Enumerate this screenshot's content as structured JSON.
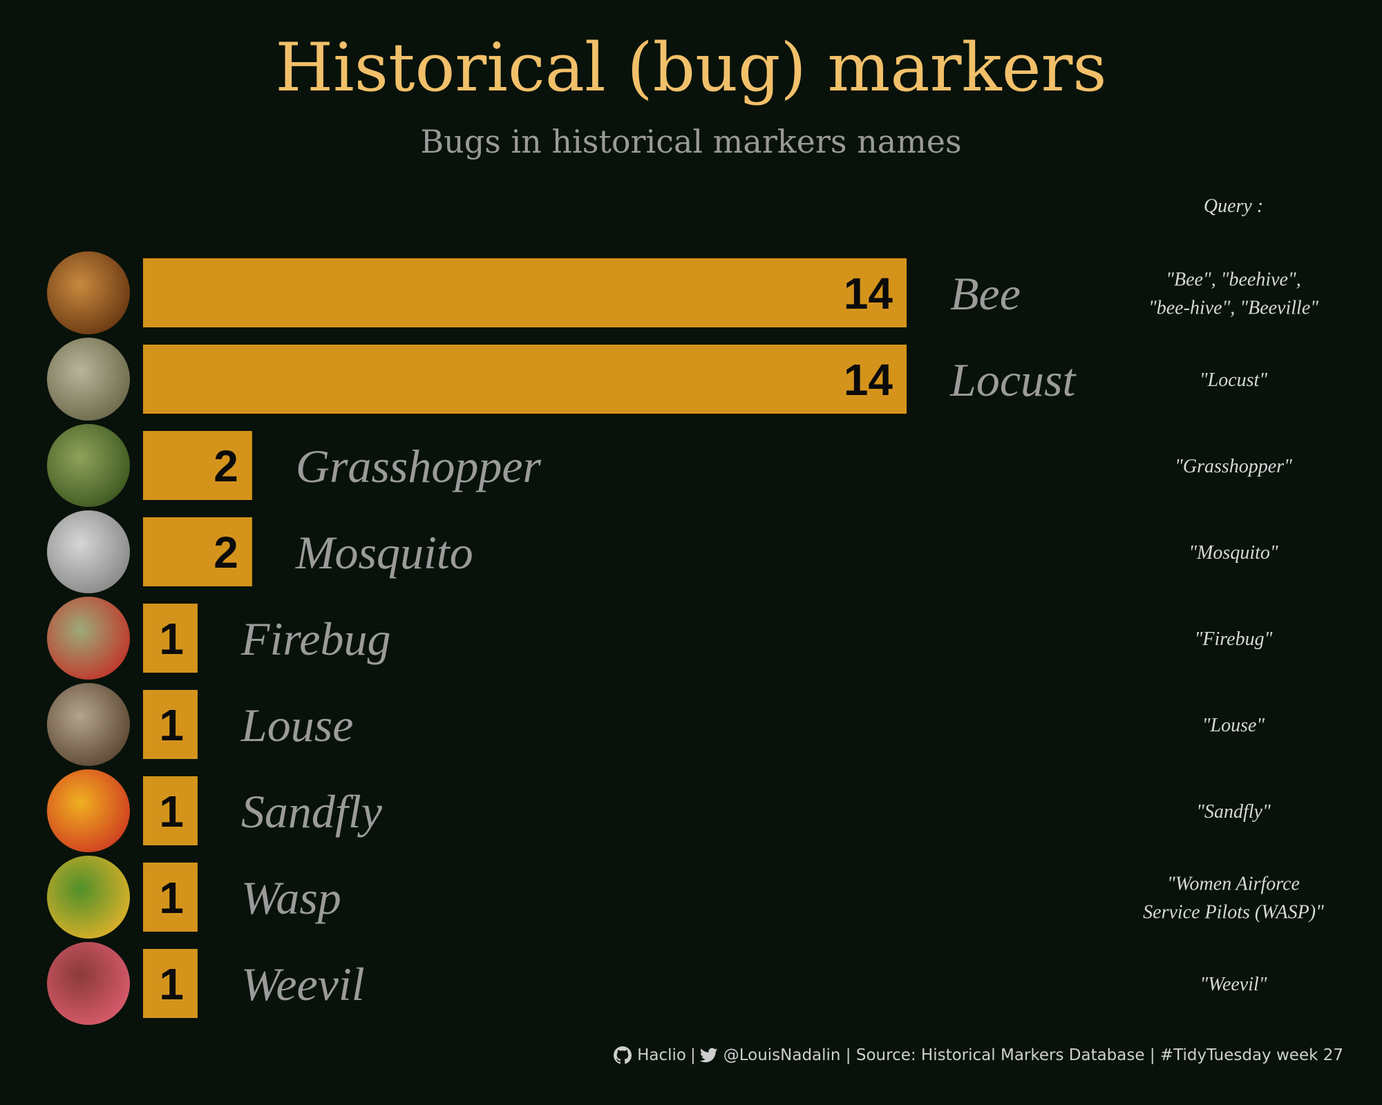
{
  "title": "Historical (bug) markers",
  "subtitle": "Bugs in historical markers names",
  "query_header": "Query :",
  "colors": {
    "background": "#08120a",
    "bar": "#d4941c",
    "title": "#f2c06a",
    "label": "#9b9b9b"
  },
  "chart_data": {
    "type": "bar",
    "orientation": "horizontal",
    "categories": [
      "Bee",
      "Locust",
      "Grasshopper",
      "Mosquito",
      "Firebug",
      "Louse",
      "Sandfly",
      "Wasp",
      "Weevil"
    ],
    "values": [
      14,
      14,
      2,
      2,
      1,
      1,
      1,
      1,
      1
    ],
    "queries": [
      [
        "\"Bee\", \"beehive\",",
        "\"bee-hive\", \"Beeville\""
      ],
      [
        "\"Locust\""
      ],
      [
        "\"Grasshopper\""
      ],
      [
        "\"Mosquito\""
      ],
      [
        "\"Firebug\""
      ],
      [
        "\"Louse\""
      ],
      [
        "\"Sandfly\""
      ],
      [
        "\"Women Airforce",
        "Service Pilots (WASP)\""
      ],
      [
        "\"Weevil\""
      ]
    ],
    "icons": [
      "bee-photo-icon",
      "locust-photo-icon",
      "grasshopper-photo-icon",
      "mosquito-photo-icon",
      "firebug-photo-icon",
      "louse-photo-icon",
      "sandfly-photo-icon",
      "wasp-photo-icon",
      "weevil-photo-icon"
    ],
    "icon_colors": [
      [
        "#c98a3e",
        "#6b3a14"
      ],
      [
        "#b8b59a",
        "#6e6a4c"
      ],
      [
        "#8fa25a",
        "#3f5a22"
      ],
      [
        "#d6d6d6",
        "#8a8a8a"
      ],
      [
        "#9cab7a",
        "#c0392b"
      ],
      [
        "#b5a48c",
        "#5e4a36"
      ],
      [
        "#f0b020",
        "#d04020"
      ],
      [
        "#4f8f2a",
        "#d8b02a"
      ],
      [
        "#8a3a3a",
        "#d65a6a"
      ]
    ],
    "xlim": [
      0,
      14
    ]
  },
  "footer": {
    "github_icon": "github-icon",
    "github_handle": "Haclio",
    "sep1": "|",
    "twitter_icon": "twitter-icon",
    "rest": "@LouisNadalin | Source: Historical Markers Database | #TidyTuesday week 27"
  }
}
